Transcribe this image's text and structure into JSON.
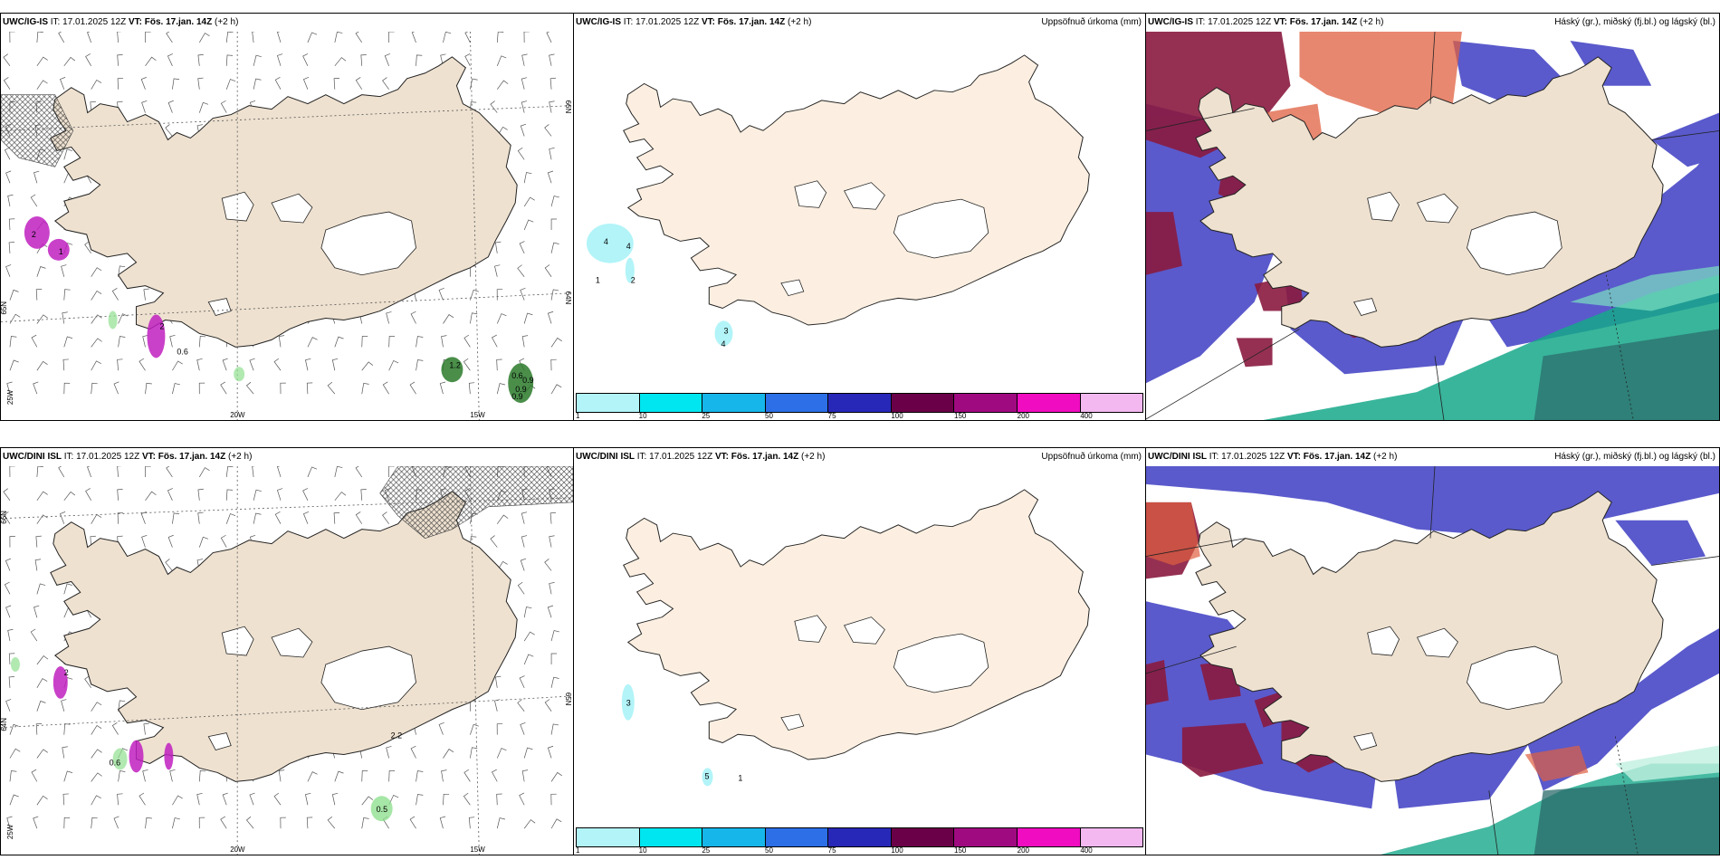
{
  "rows": [
    {
      "model": "UWC/IG-IS",
      "it_label": "IT:",
      "it_value": "17.01.2025 12Z",
      "vt_label": "VT:",
      "vt_value": "Fös. 17.jan. 14Z",
      "lead": "(+2 h)",
      "wind_values": [
        "2",
        "1",
        "2",
        "0.6",
        "1.2",
        "0.6",
        "0.9",
        "0.9",
        "0.9"
      ],
      "precip_values": [
        "4",
        "4",
        "1",
        "2",
        "3",
        "4"
      ]
    },
    {
      "model": "UWC/DINI ISL",
      "it_label": "IT:",
      "it_value": "17.01.2025 12Z",
      "vt_label": "VT:",
      "vt_value": "Fös. 17.jan. 14Z",
      "lead": "(+2 h)",
      "wind_values": [
        "2",
        "0.6",
        "2.2",
        "0.5"
      ],
      "precip_values": [
        "3",
        "5",
        "1"
      ]
    }
  ],
  "precip_title": "Uppsöfnuð úrkoma (mm)",
  "cloud_title": "Háský (gr.), miðský (fj.bl.) og lágský (bl.)",
  "axis_labels": {
    "lon_20w": "20W",
    "lon_15w": "15W",
    "lon_25w": "25W",
    "lat_66n": "66N",
    "lat_64n": "64N",
    "lat_65n": "65N"
  },
  "legend": {
    "labels": [
      "1",
      "10",
      "25",
      "50",
      "75",
      "100",
      "150",
      "200",
      "400"
    ],
    "colors": [
      "#b2f4f8",
      "#00e6f0",
      "#16b6ea",
      "#2c6fe6",
      "#2828b8",
      "#6a0048",
      "#a00a80",
      "#f00cc0",
      "#f4b8f0"
    ]
  },
  "colors": {
    "land": "#eee1d0",
    "land_light": "#fcefe1",
    "glacier": "#ffffff",
    "coast": "#222222",
    "high_cloud": "#8a1a40",
    "mid_cloud": "#5a5acc",
    "low_cloud": "#16a88a"
  }
}
